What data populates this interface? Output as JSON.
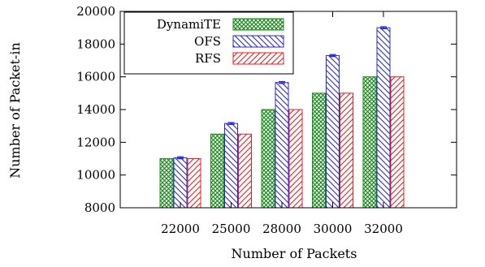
{
  "chart_data": {
    "type": "bar",
    "title": "",
    "xlabel": "Number of Packets",
    "ylabel": "Number of Packet-in",
    "categories": [
      "22000",
      "25000",
      "28000",
      "30000",
      "32000"
    ],
    "ylim": [
      8000,
      20000
    ],
    "yticks": [
      8000,
      10000,
      12000,
      14000,
      16000,
      18000,
      20000
    ],
    "grid": false,
    "legend_position": "top-left",
    "series": [
      {
        "name": "DynamiTE",
        "values": [
          11000,
          12500,
          14000,
          15000,
          16000
        ],
        "color": "#1a8a1a",
        "pattern": "crosshatch"
      },
      {
        "name": "OFS",
        "values": [
          11050,
          13150,
          15650,
          17300,
          19000
        ],
        "color": "#2828d8",
        "pattern": "diagonal-down"
      },
      {
        "name": "RFS",
        "values": [
          11000,
          12500,
          14000,
          15000,
          16000
        ],
        "color": "#e02020",
        "pattern": "diagonal-up"
      }
    ],
    "error_bars": {
      "series": "OFS",
      "approx_half_range": 60
    }
  }
}
